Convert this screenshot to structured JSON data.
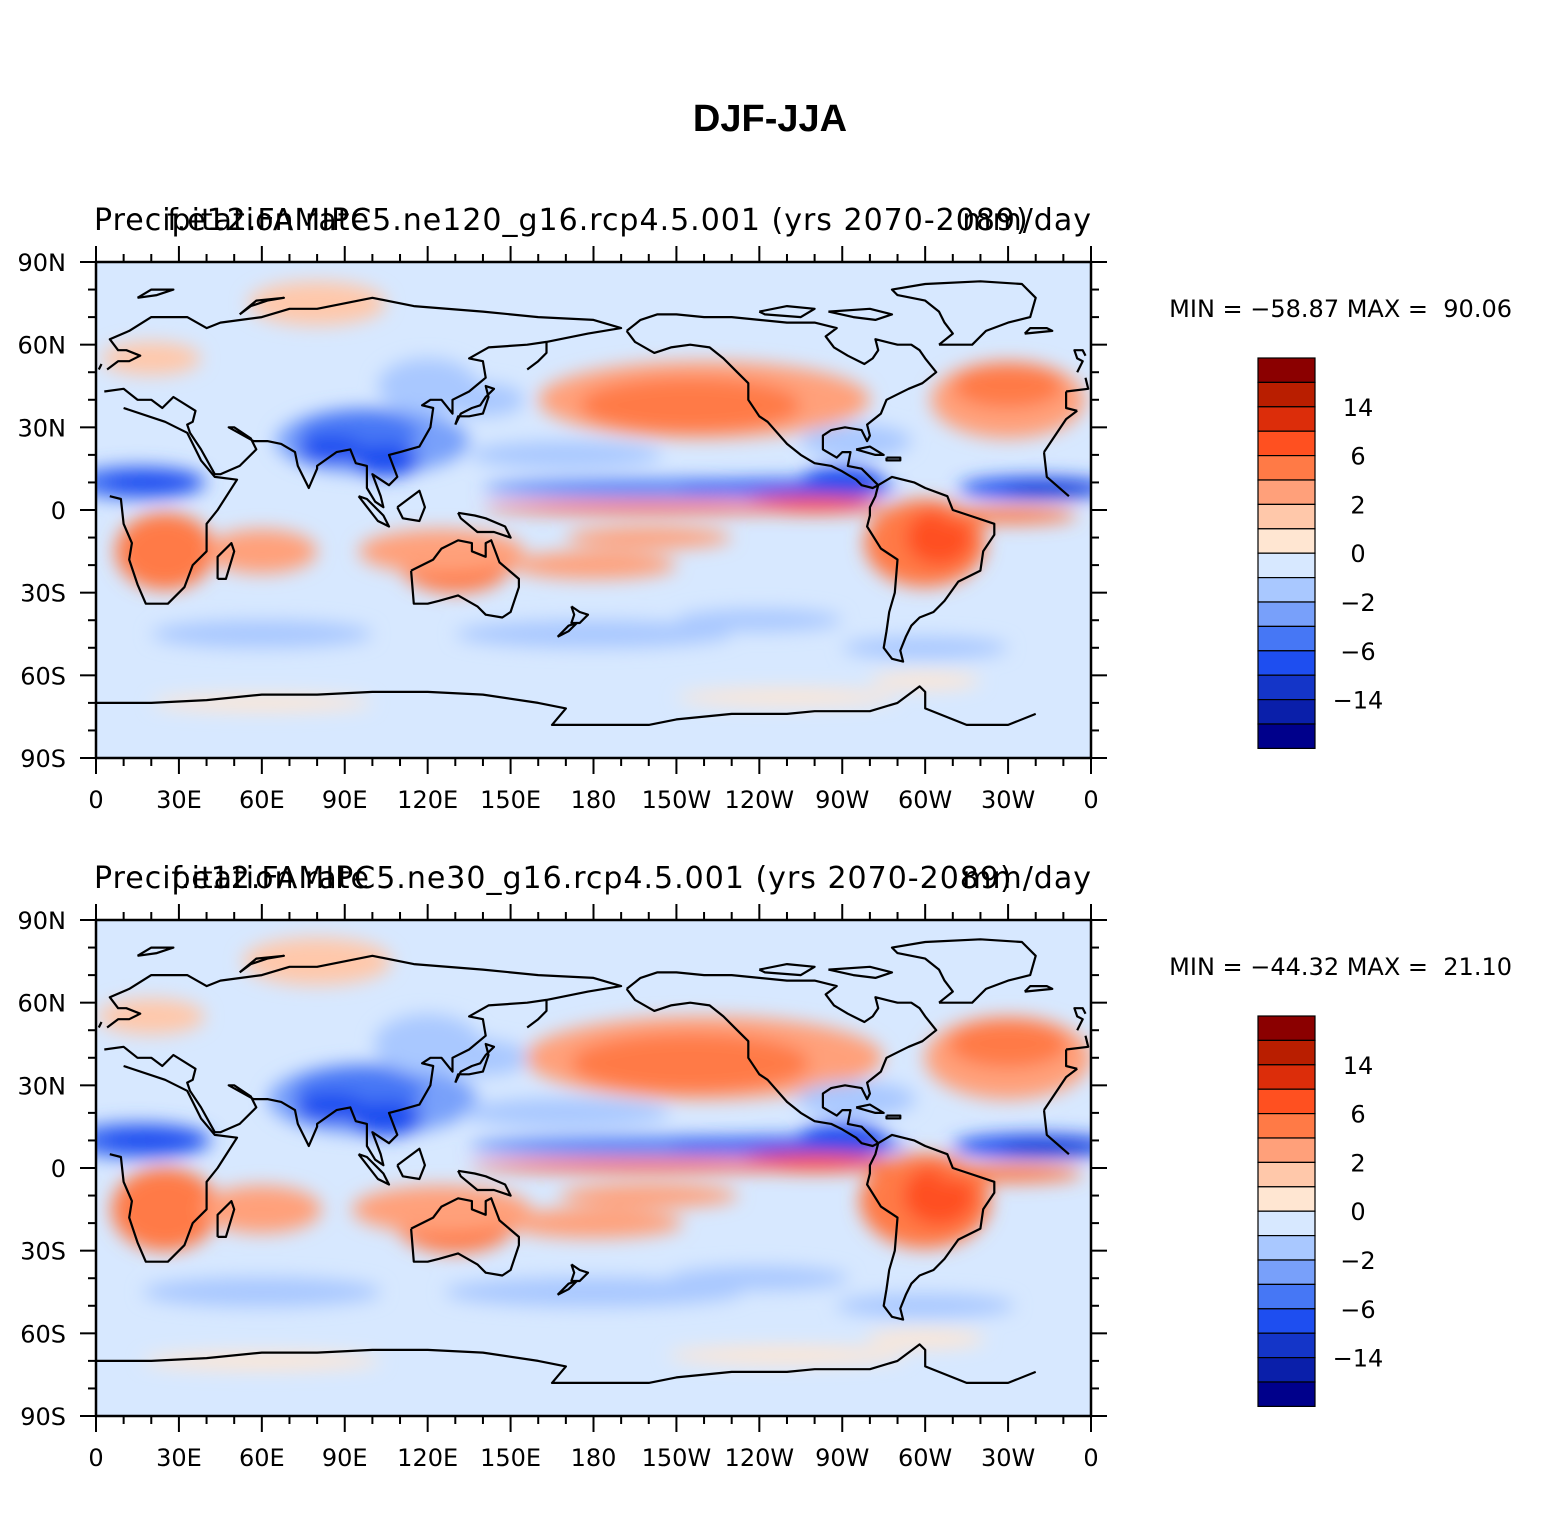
{
  "figure_title": "DJF-JJA",
  "colorbar": {
    "colors": [
      "#00008b",
      "#0a1faa",
      "#1435c8",
      "#1e4ef0",
      "#4677f5",
      "#78a0fa",
      "#a9c8ff",
      "#d7e8ff",
      "#ffe6d2",
      "#ffc8aa",
      "#ffa07a",
      "#ff7a46",
      "#ff5020",
      "#dc2d0a",
      "#b91e00",
      "#8b0000"
    ],
    "labels": [
      {
        "text": "14",
        "slot": 2
      },
      {
        "text": "6",
        "slot": 4
      },
      {
        "text": "2",
        "slot": 6
      },
      {
        "text": "0",
        "slot": 8
      },
      {
        "text": "−2",
        "slot": 10
      },
      {
        "text": "−6",
        "slot": 12
      },
      {
        "text": "−14",
        "slot": 14
      }
    ]
  },
  "x_ticks": [
    "0",
    "30E",
    "60E",
    "90E",
    "120E",
    "150E",
    "180",
    "150W",
    "120W",
    "90W",
    "60W",
    "30W",
    "0"
  ],
  "y_ticks": [
    "90N",
    "60N",
    "30N",
    "0",
    "30S",
    "60S",
    "90S"
  ],
  "panels": [
    {
      "left_title": "Precipitation rate",
      "case_title": "f.e12.FAMIPC5.ne120_g16.rcp4.5.001 (yrs 2070-2089)",
      "units": "mm/day",
      "stats": "MIN = −58.87 MAX =  90.06",
      "min": -58.87,
      "max": 90.06
    },
    {
      "left_title": "Precipitation rate",
      "case_title": "f.e12.FAMIPC5.ne30_g16.rcp4.5.001 (yrs 2070-2089)",
      "units": "mm/day",
      "stats": "MIN = −44.32 MAX =  21.10",
      "min": -44.32,
      "max": 21.1
    }
  ],
  "chart_data": {
    "type": "heatmap",
    "title": "DJF-JJA",
    "variable": "Precipitation rate",
    "units": "mm/day",
    "levels": [
      -14,
      -6,
      -2,
      0,
      2,
      6,
      14
    ],
    "x_range": [
      0,
      360
    ],
    "y_range": [
      -90,
      90
    ],
    "x_ticklabels": [
      "0",
      "30E",
      "60E",
      "90E",
      "120E",
      "150E",
      "180",
      "150W",
      "120W",
      "90W",
      "60W",
      "30W",
      "0"
    ],
    "y_ticklabels": [
      "90N",
      "60N",
      "30N",
      "0",
      "30S",
      "60S",
      "90S"
    ],
    "panels": [
      {
        "case": "f.e12.FAMIPC5.ne120_g16.rcp4.5.001 (yrs 2070-2089)",
        "min": -58.87,
        "max": 90.06
      },
      {
        "case": "f.e12.FAMIPC5.ne30_g16.rcp4.5.001 (yrs 2070-2089)",
        "min": -44.32,
        "max": 21.1
      }
    ]
  }
}
